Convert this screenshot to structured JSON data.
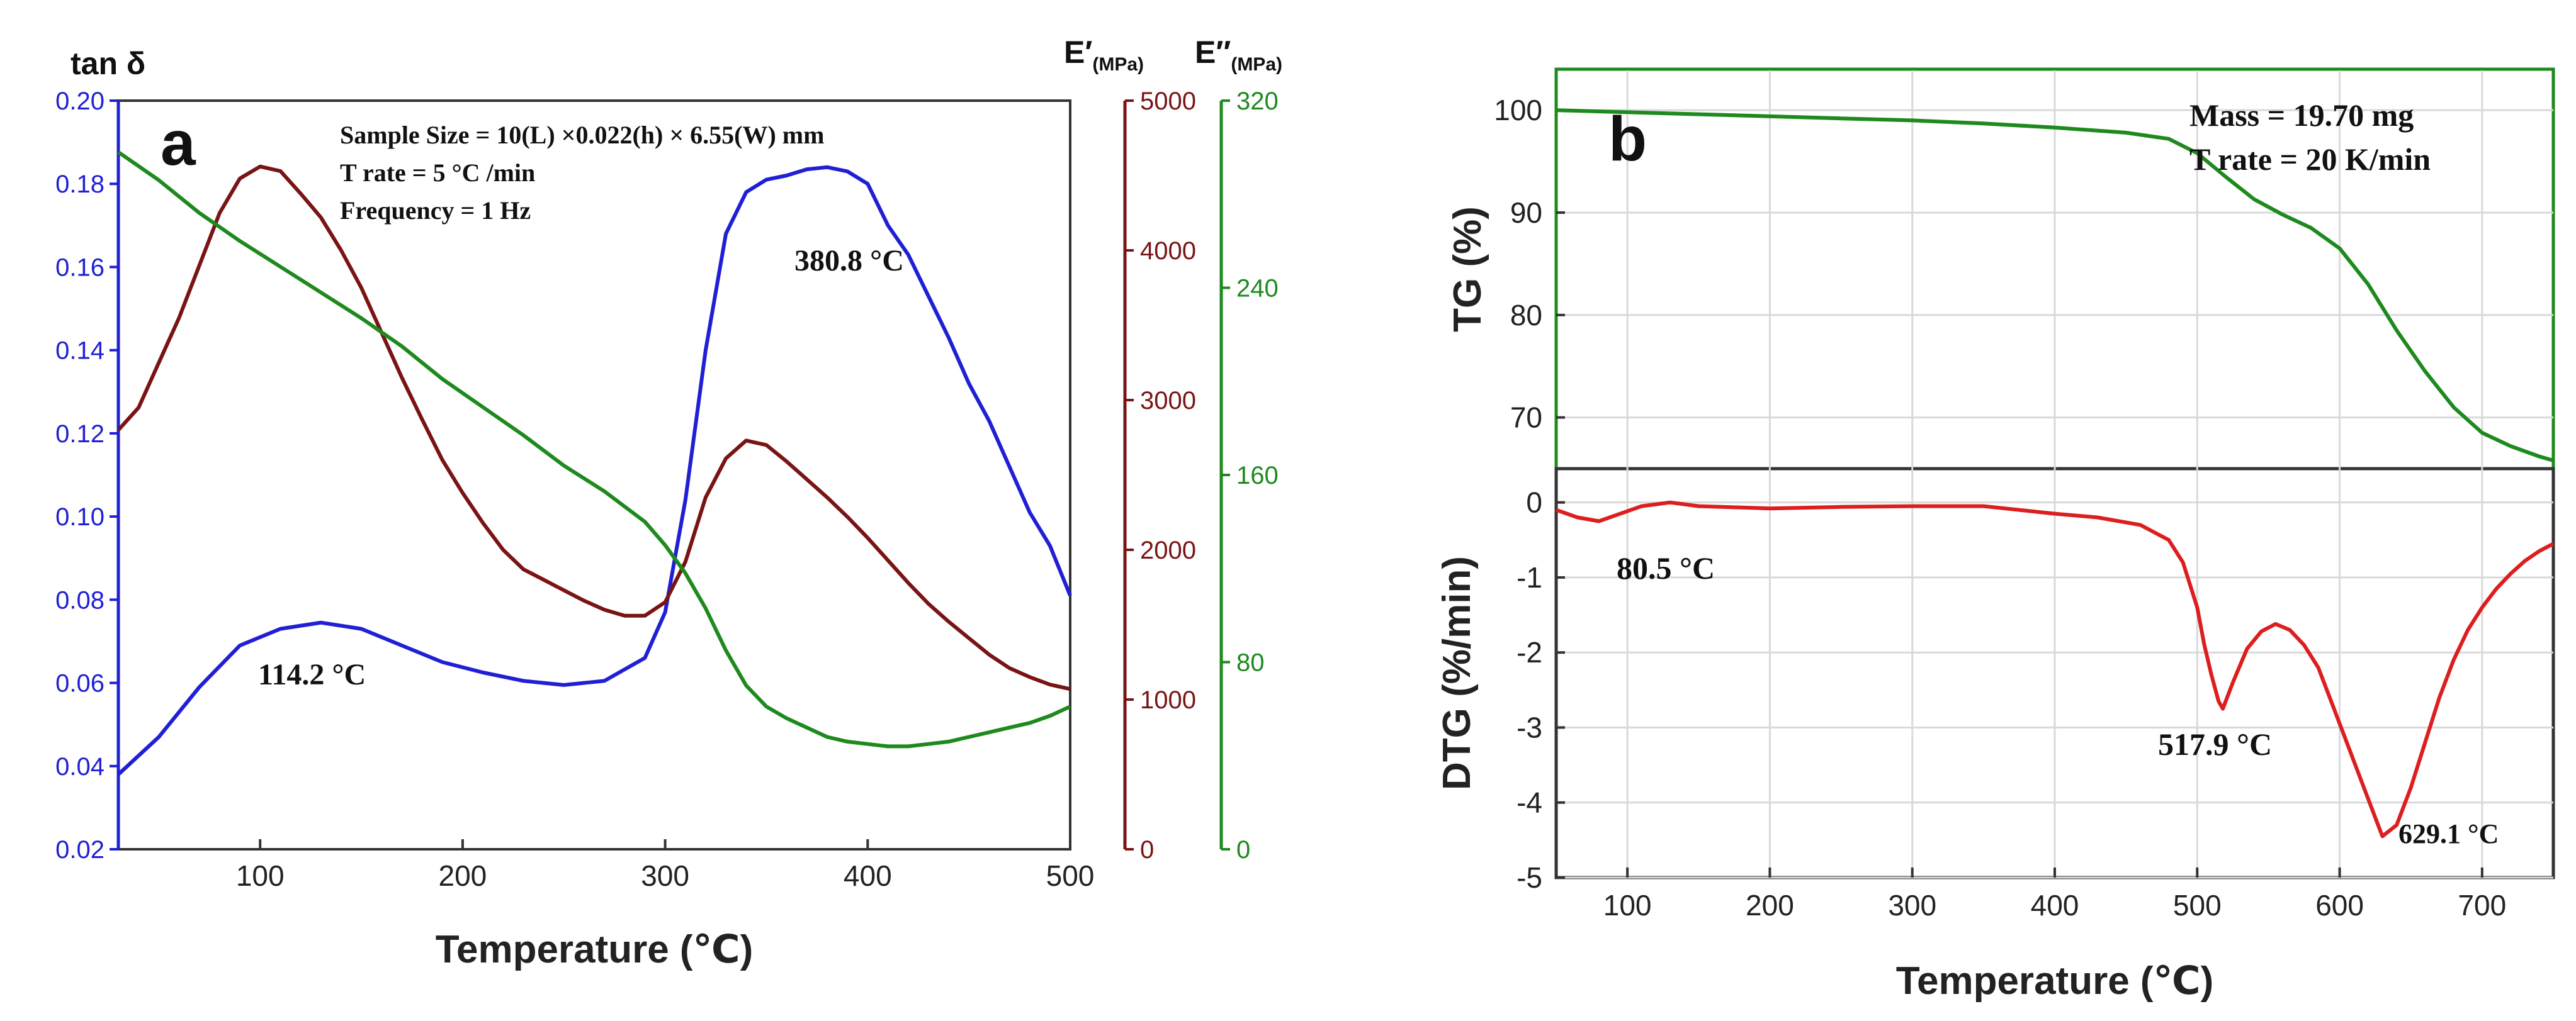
{
  "colors": {
    "tan": "#1f1fd6",
    "eprime": "#7a1414",
    "edouble": "#1e8a1e",
    "tg": "#1e8a1e",
    "dtg": "#dd1e1e",
    "axis": "#222222",
    "grid": "#d9d9d9"
  },
  "panel_a": {
    "label": "a",
    "annotations": {
      "line1": "Sample Size = 10(L) ×0.022(h) × 6.55(W) mm",
      "line2": "T rate = 5 °C /min",
      "line3": "Frequency = 1 Hz"
    },
    "peak_low": "114.2 °C",
    "peak_high": "380.8 °C",
    "xlabel": "Temperature (℃)",
    "ylabel_left": "tan δ",
    "ylabel_e1": "E′",
    "ylabel_e1_unit": "(MPa)",
    "ylabel_e2": "E′′",
    "ylabel_e2_unit": "(MPa)"
  },
  "panel_b": {
    "label": "b",
    "annotations": {
      "line1": "Mass = 19.70 mg",
      "line2": "T rate = 20 K/min"
    },
    "peak1": "80.5 °C",
    "peak2": "517.9 °C",
    "peak3": "629.1 °C",
    "xlabel": "Temperature (℃)",
    "ylabel_top": "TG (%)",
    "ylabel_bottom": "DTG (%/min)"
  },
  "chart_data": [
    {
      "type": "line",
      "title": "",
      "xlabel": "Temperature (℃)",
      "xlim": [
        30,
        500
      ],
      "xticks": [
        100,
        200,
        300,
        400,
        500
      ],
      "axes": [
        {
          "name": "tan δ",
          "lim": [
            0.02,
            0.2
          ],
          "ticks": [
            "0.02",
            "0.04",
            "0.06",
            "0.08",
            "0.10",
            "0.12",
            "0.14",
            "0.16",
            "0.18",
            "0.20"
          ]
        },
        {
          "name": "E′ (MPa)",
          "lim": [
            0,
            5000
          ],
          "ticks": [
            "0",
            "1000",
            "2000",
            "3000",
            "4000",
            "5000"
          ]
        },
        {
          "name": "E′′ (MPa)",
          "lim": [
            0,
            320
          ],
          "ticks": [
            "0",
            "80",
            "160",
            "240",
            "320"
          ]
        }
      ],
      "series": [
        {
          "name": "tan δ",
          "axis": "tan δ",
          "color": "#1f1fd6",
          "x": [
            30,
            50,
            70,
            90,
            110,
            130,
            150,
            170,
            190,
            210,
            230,
            250,
            270,
            290,
            300,
            310,
            320,
            330,
            340,
            350,
            360,
            370,
            380,
            390,
            400,
            410,
            420,
            430,
            440,
            450,
            460,
            470,
            480,
            490,
            500
          ],
          "y": [
            0.038,
            0.047,
            0.059,
            0.069,
            0.073,
            0.0745,
            0.073,
            0.069,
            0.065,
            0.0625,
            0.0605,
            0.0595,
            0.0605,
            0.066,
            0.077,
            0.104,
            0.14,
            0.168,
            0.178,
            0.181,
            0.182,
            0.1835,
            0.184,
            0.183,
            0.18,
            0.17,
            0.163,
            0.153,
            0.143,
            0.132,
            0.123,
            0.112,
            0.101,
            0.093,
            0.081
          ]
        },
        {
          "name": "E′",
          "axis": "E′ (MPa)",
          "color": "#7a1414",
          "x": [
            30,
            40,
            50,
            60,
            70,
            80,
            90,
            100,
            110,
            120,
            130,
            140,
            150,
            160,
            170,
            180,
            190,
            200,
            210,
            220,
            230,
            240,
            250,
            260,
            270,
            280,
            290,
            300,
            310,
            320,
            330,
            340,
            350,
            360,
            370,
            380,
            390,
            400,
            410,
            420,
            430,
            440,
            450,
            460,
            470,
            480,
            490,
            500
          ],
          "y": [
            2800,
            2950,
            3250,
            3550,
            3900,
            4250,
            4480,
            4560,
            4530,
            4380,
            4220,
            4000,
            3750,
            3450,
            3150,
            2870,
            2600,
            2380,
            2180,
            2000,
            1870,
            1800,
            1730,
            1660,
            1600,
            1560,
            1560,
            1650,
            1920,
            2350,
            2610,
            2730,
            2700,
            2590,
            2470,
            2350,
            2220,
            2080,
            1930,
            1780,
            1640,
            1520,
            1410,
            1300,
            1210,
            1150,
            1100,
            1070
          ]
        },
        {
          "name": "E′′",
          "axis": "E′′ (MPa)",
          "color": "#1e8a1e",
          "x": [
            30,
            50,
            70,
            90,
            110,
            130,
            150,
            170,
            190,
            210,
            230,
            250,
            270,
            290,
            300,
            310,
            320,
            330,
            340,
            350,
            360,
            370,
            380,
            390,
            400,
            410,
            420,
            430,
            440,
            450,
            460,
            470,
            480,
            490,
            500
          ],
          "y": [
            298,
            286,
            272,
            260,
            249,
            238,
            227,
            215,
            201,
            189,
            177,
            164,
            153,
            140,
            130,
            118,
            103,
            85,
            70,
            61,
            56,
            52,
            48,
            46,
            45,
            44,
            44,
            45,
            46,
            48,
            50,
            52,
            54,
            57,
            61
          ]
        }
      ],
      "annotations": [
        "114.2 °C",
        "380.8 °C"
      ]
    },
    {
      "type": "line",
      "title": "",
      "xlabel": "Temperature (℃)",
      "xlim": [
        50,
        750
      ],
      "xticks": [
        100,
        200,
        300,
        400,
        500,
        600,
        700
      ],
      "subplots": [
        {
          "ylabel": "TG (%)",
          "ylim": [
            65,
            104
          ],
          "yticks": [
            "70",
            "80",
            "90",
            "100"
          ],
          "series": [
            {
              "name": "TG",
              "color": "#1e8a1e",
              "x": [
                50,
                100,
                150,
                200,
                250,
                300,
                350,
                400,
                450,
                480,
                500,
                520,
                540,
                560,
                580,
                600,
                620,
                640,
                660,
                680,
                700,
                720,
                740,
                750
              ],
              "y": [
                100,
                99.8,
                99.6,
                99.4,
                99.2,
                99.0,
                98.7,
                98.3,
                97.8,
                97.2,
                95.8,
                93.5,
                91.3,
                89.8,
                88.5,
                86.5,
                83,
                78.5,
                74.5,
                71,
                68.5,
                67.2,
                66.2,
                65.8
              ]
            }
          ]
        },
        {
          "ylabel": "DTG (%/min)",
          "ylim": [
            -5,
            0.45
          ],
          "yticks": [
            "-5",
            "-4",
            "-3",
            "-2",
            "-1",
            "0"
          ],
          "series": [
            {
              "name": "DTG",
              "color": "#dd1e1e",
              "x": [
                50,
                65,
                80,
                95,
                110,
                130,
                150,
                200,
                250,
                300,
                350,
                400,
                430,
                460,
                480,
                490,
                500,
                505,
                510,
                515,
                518,
                525,
                535,
                545,
                555,
                565,
                575,
                585,
                595,
                605,
                615,
                625,
                630,
                640,
                650,
                660,
                670,
                680,
                690,
                700,
                710,
                720,
                730,
                740,
                750
              ],
              "y": [
                -0.1,
                -0.2,
                -0.25,
                -0.15,
                -0.05,
                0.0,
                -0.05,
                -0.08,
                -0.06,
                -0.05,
                -0.05,
                -0.15,
                -0.2,
                -0.3,
                -0.5,
                -0.8,
                -1.4,
                -1.9,
                -2.3,
                -2.65,
                -2.75,
                -2.4,
                -1.95,
                -1.72,
                -1.62,
                -1.7,
                -1.9,
                -2.2,
                -2.7,
                -3.2,
                -3.7,
                -4.2,
                -4.45,
                -4.3,
                -3.8,
                -3.2,
                -2.6,
                -2.1,
                -1.7,
                -1.4,
                -1.15,
                -0.95,
                -0.78,
                -0.65,
                -0.55
              ]
            }
          ]
        }
      ],
      "annotations": [
        "80.5 °C",
        "517.9 °C",
        "629.1 °C"
      ]
    }
  ]
}
